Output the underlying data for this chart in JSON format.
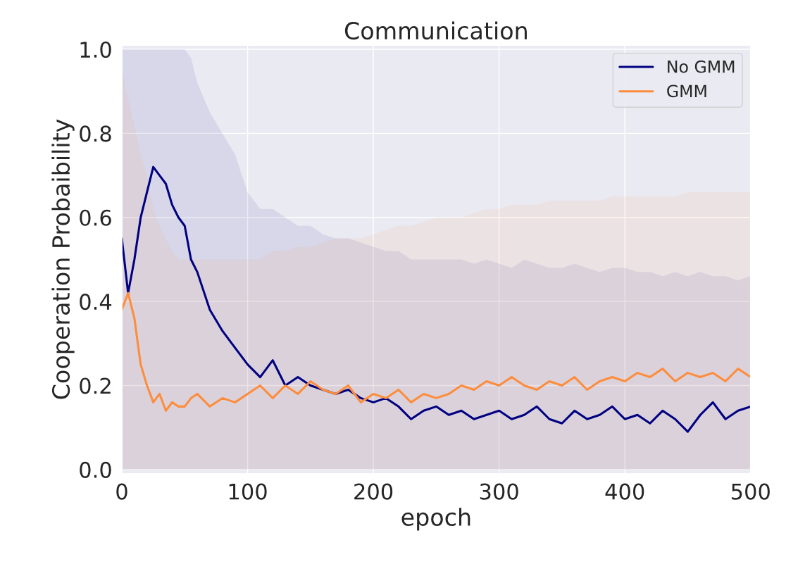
{
  "chart_data": {
    "type": "line",
    "title": "Communication",
    "xlabel": "epoch",
    "ylabel": "Cooperation Probaibility",
    "x": [
      0,
      5,
      10,
      15,
      20,
      25,
      30,
      35,
      40,
      45,
      50,
      55,
      60,
      70,
      80,
      90,
      100,
      110,
      120,
      130,
      140,
      150,
      160,
      170,
      180,
      190,
      200,
      210,
      220,
      230,
      240,
      250,
      260,
      270,
      280,
      290,
      300,
      310,
      320,
      330,
      340,
      350,
      360,
      370,
      380,
      390,
      400,
      410,
      420,
      430,
      440,
      450,
      460,
      470,
      480,
      490,
      500
    ],
    "series": [
      {
        "name": "No GMM",
        "color": "#000080",
        "values": [
          0.55,
          0.42,
          0.5,
          0.6,
          0.66,
          0.72,
          0.7,
          0.68,
          0.63,
          0.6,
          0.58,
          0.5,
          0.47,
          0.38,
          0.33,
          0.29,
          0.25,
          0.22,
          0.26,
          0.2,
          0.22,
          0.2,
          0.19,
          0.18,
          0.19,
          0.17,
          0.16,
          0.17,
          0.15,
          0.12,
          0.14,
          0.15,
          0.13,
          0.14,
          0.12,
          0.13,
          0.14,
          0.12,
          0.13,
          0.15,
          0.12,
          0.11,
          0.14,
          0.12,
          0.13,
          0.15,
          0.12,
          0.13,
          0.11,
          0.14,
          0.12,
          0.09,
          0.13,
          0.16,
          0.12,
          0.14,
          0.15
        ],
        "upper": [
          1.0,
          1.0,
          1.0,
          1.0,
          1.0,
          1.0,
          1.0,
          1.0,
          1.0,
          1.0,
          1.0,
          0.98,
          0.92,
          0.85,
          0.8,
          0.75,
          0.66,
          0.62,
          0.62,
          0.6,
          0.58,
          0.58,
          0.56,
          0.55,
          0.55,
          0.54,
          0.53,
          0.52,
          0.52,
          0.5,
          0.5,
          0.5,
          0.5,
          0.5,
          0.49,
          0.5,
          0.49,
          0.48,
          0.5,
          0.49,
          0.48,
          0.48,
          0.49,
          0.48,
          0.47,
          0.48,
          0.48,
          0.47,
          0.47,
          0.46,
          0.47,
          0.46,
          0.47,
          0.46,
          0.46,
          0.45,
          0.46
        ],
        "lower": [
          0,
          0,
          0,
          0,
          0,
          0,
          0,
          0,
          0,
          0,
          0,
          0,
          0,
          0,
          0,
          0,
          0,
          0,
          0,
          0,
          0,
          0,
          0,
          0,
          0,
          0,
          0,
          0,
          0,
          0,
          0,
          0,
          0,
          0,
          0,
          0,
          0,
          0,
          0,
          0,
          0,
          0,
          0,
          0,
          0,
          0,
          0,
          0,
          0,
          0,
          0,
          0,
          0,
          0,
          0,
          0,
          0
        ]
      },
      {
        "name": "GMM",
        "color": "#fd8d3c",
        "values": [
          0.38,
          0.42,
          0.36,
          0.25,
          0.2,
          0.16,
          0.18,
          0.14,
          0.16,
          0.15,
          0.15,
          0.17,
          0.18,
          0.15,
          0.17,
          0.16,
          0.18,
          0.2,
          0.17,
          0.2,
          0.18,
          0.21,
          0.19,
          0.18,
          0.2,
          0.16,
          0.18,
          0.17,
          0.19,
          0.16,
          0.18,
          0.17,
          0.18,
          0.2,
          0.19,
          0.21,
          0.2,
          0.22,
          0.2,
          0.19,
          0.21,
          0.2,
          0.22,
          0.19,
          0.21,
          0.22,
          0.21,
          0.23,
          0.22,
          0.24,
          0.21,
          0.23,
          0.22,
          0.23,
          0.21,
          0.24,
          0.22
        ],
        "upper": [
          0.95,
          0.88,
          0.82,
          0.75,
          0.7,
          0.62,
          0.58,
          0.55,
          0.52,
          0.5,
          0.5,
          0.5,
          0.5,
          0.5,
          0.5,
          0.5,
          0.5,
          0.5,
          0.52,
          0.52,
          0.53,
          0.53,
          0.54,
          0.55,
          0.55,
          0.55,
          0.56,
          0.57,
          0.58,
          0.58,
          0.59,
          0.6,
          0.6,
          0.6,
          0.61,
          0.62,
          0.62,
          0.63,
          0.63,
          0.63,
          0.64,
          0.64,
          0.64,
          0.64,
          0.64,
          0.65,
          0.65,
          0.65,
          0.65,
          0.65,
          0.65,
          0.66,
          0.66,
          0.66,
          0.66,
          0.66,
          0.66
        ],
        "lower": [
          0,
          0,
          0,
          0,
          0,
          0,
          0,
          0,
          0,
          0,
          0,
          0,
          0,
          0,
          0,
          0,
          0,
          0,
          0,
          0,
          0,
          0,
          0,
          0,
          0,
          0,
          0,
          0,
          0,
          0,
          0,
          0,
          0,
          0,
          0,
          0,
          0,
          0,
          0,
          0,
          0,
          0,
          0,
          0,
          0,
          0,
          0,
          0,
          0,
          0,
          0,
          0,
          0,
          0,
          0,
          0,
          0
        ]
      }
    ],
    "xlim": [
      0,
      500
    ],
    "ylim": [
      -0.01,
      1.01
    ],
    "xticks": [
      0,
      100,
      200,
      300,
      400,
      500
    ],
    "yticks": [
      {
        "value": 0,
        "label": "0.0"
      },
      {
        "value": 0.2,
        "label": "0.2"
      },
      {
        "value": 0.4,
        "label": "0.4"
      },
      {
        "value": 0.6,
        "label": "0.6"
      },
      {
        "value": 0.8,
        "label": "0.8"
      },
      {
        "value": 1.0,
        "label": "1.0"
      }
    ],
    "grid": true,
    "legend": "top right",
    "line_style": "solid"
  }
}
